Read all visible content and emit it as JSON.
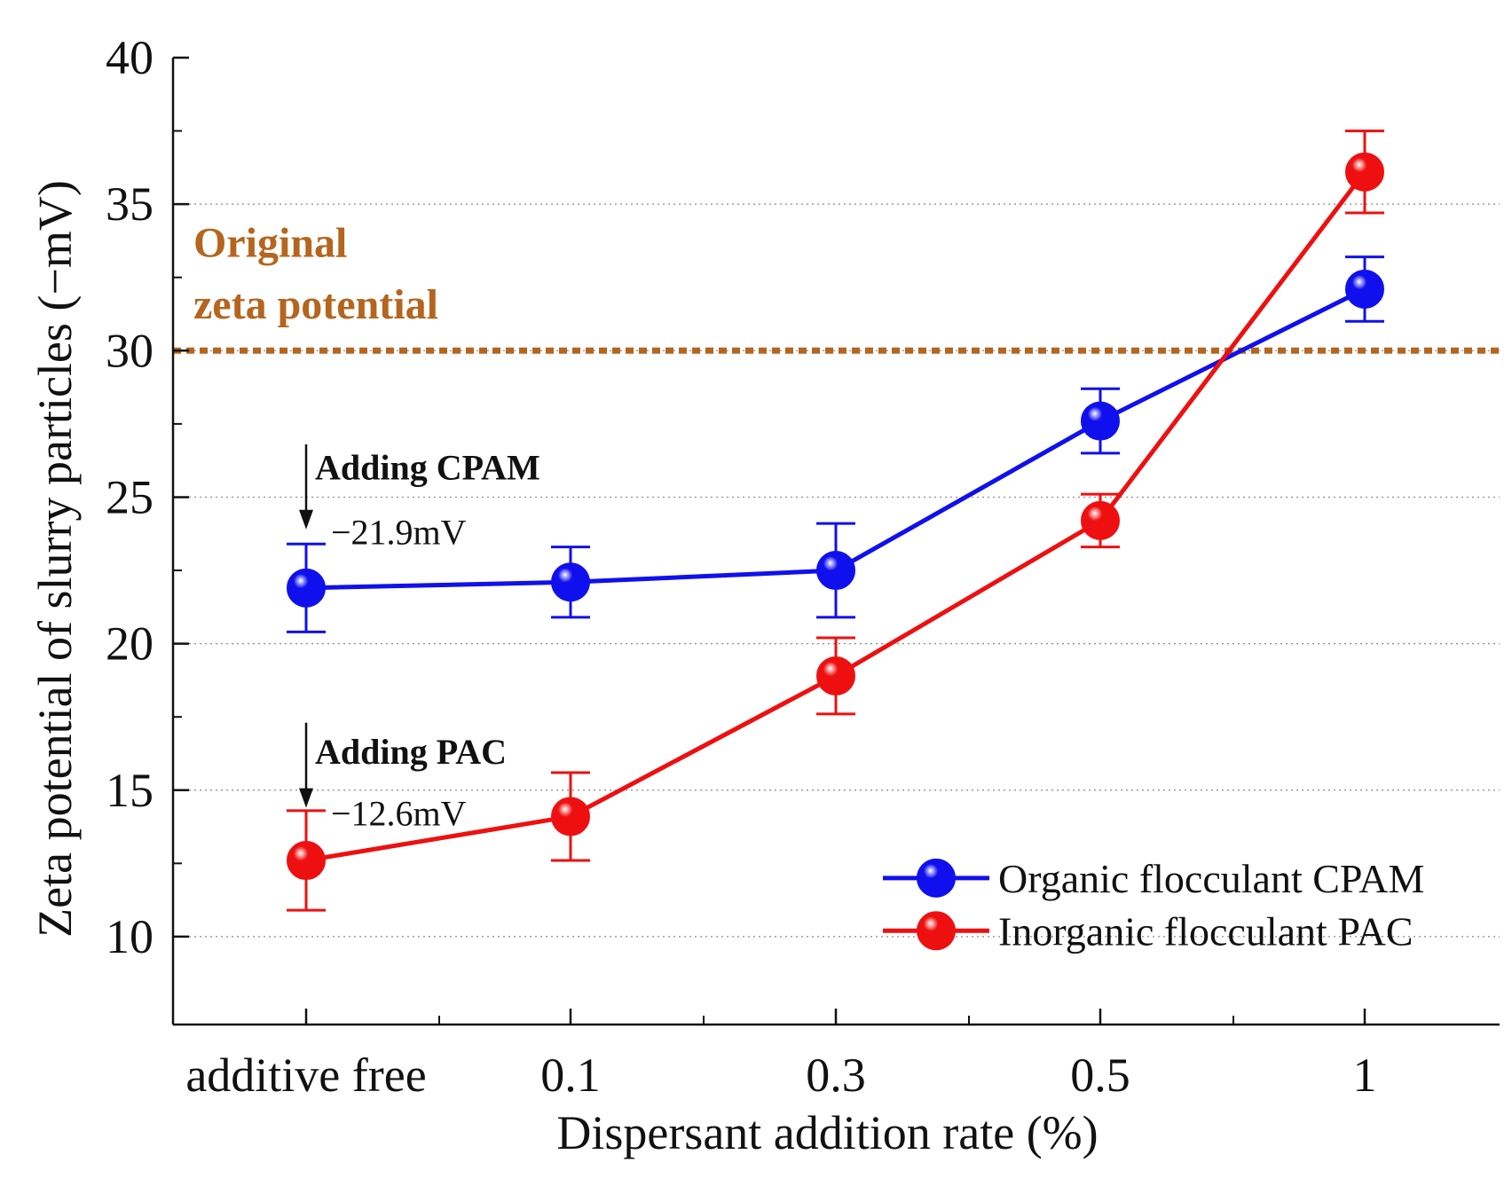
{
  "chart_data": {
    "type": "line",
    "xlabel": "Dispersant addition rate (%)",
    "ylabel": "Zeta potential of slurry particles (−mV)",
    "categories": [
      "additive free",
      "0.1",
      "0.3",
      "0.5",
      "1"
    ],
    "ylim": [
      7,
      40
    ],
    "yticks": [
      10,
      15,
      20,
      25,
      30,
      35,
      40
    ],
    "grid": "horizontal dotted",
    "legend_position": "bottom-right",
    "series": [
      {
        "name": "Organic flocculant CPAM",
        "color": "#1010ee",
        "values": [
          21.9,
          22.1,
          22.5,
          27.6,
          32.1
        ],
        "error": [
          1.5,
          1.2,
          1.6,
          1.1,
          1.1
        ]
      },
      {
        "name": "Inorganic flocculant PAC",
        "color": "#ee1010",
        "values": [
          12.6,
          14.1,
          18.9,
          24.2,
          36.1
        ],
        "error": [
          1.7,
          1.5,
          1.3,
          0.9,
          1.4
        ]
      }
    ],
    "reference_line": {
      "value": 30,
      "label_line1": "Original",
      "label_line2": "zeta potential",
      "color": "#b5651d"
    },
    "annotations": [
      {
        "category_index": 0,
        "label": "Adding CPAM",
        "value_text": "−21.9mV"
      },
      {
        "category_index": 0,
        "label": "Adding PAC",
        "value_text": "−12.6mV"
      }
    ]
  }
}
